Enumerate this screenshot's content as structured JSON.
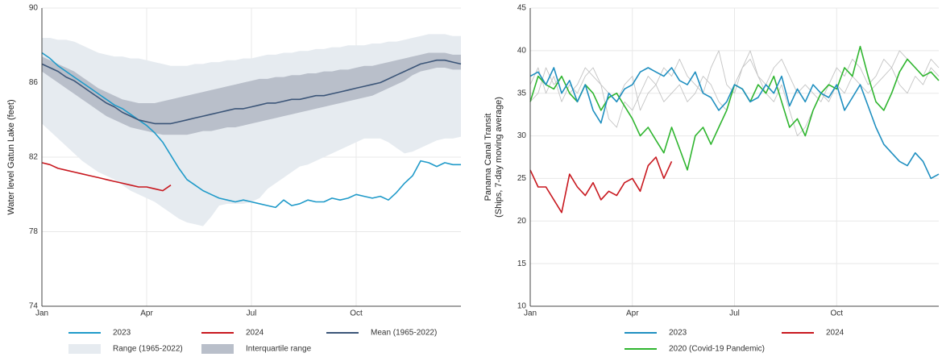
{
  "chart_data": [
    {
      "type": "line",
      "ylabel": "Water level Gatun Lake (feet)",
      "categories": [
        "Jan",
        null,
        null,
        null,
        null,
        null,
        null,
        null,
        null,
        null,
        null,
        null,
        null,
        "Apr",
        null,
        null,
        null,
        null,
        null,
        null,
        null,
        null,
        null,
        null,
        null,
        null,
        "Jul",
        null,
        null,
        null,
        null,
        null,
        null,
        null,
        null,
        null,
        null,
        null,
        null,
        "Oct",
        null,
        null,
        null,
        null,
        null,
        null,
        null,
        null,
        null,
        null,
        null,
        null,
        null
      ],
      "ylim": [
        74,
        90
      ],
      "yticks": [
        74,
        78,
        82,
        86,
        90
      ],
      "grid": true,
      "bands": [
        {
          "name": "Range (1965-2022)",
          "color": "#e6ebf0",
          "upper": [
            88.4,
            88.4,
            88.3,
            88.3,
            88.2,
            88.0,
            87.8,
            87.6,
            87.5,
            87.4,
            87.4,
            87.3,
            87.3,
            87.2,
            87.1,
            87.0,
            86.9,
            86.9,
            86.9,
            87.0,
            87.0,
            87.1,
            87.1,
            87.2,
            87.2,
            87.3,
            87.3,
            87.4,
            87.5,
            87.5,
            87.6,
            87.6,
            87.7,
            87.7,
            87.8,
            87.8,
            87.9,
            87.9,
            88.0,
            88.0,
            88.0,
            88.1,
            88.1,
            88.2,
            88.2,
            88.3,
            88.4,
            88.5,
            88.6,
            88.6,
            88.6,
            88.5,
            88.5
          ],
          "lower": [
            83.8,
            83.4,
            83.0,
            82.6,
            82.2,
            81.8,
            81.5,
            81.2,
            81.0,
            80.8,
            80.5,
            80.2,
            80.0,
            79.8,
            79.6,
            79.3,
            79.0,
            78.7,
            78.5,
            78.4,
            78.3,
            78.8,
            79.4,
            79.5,
            79.5,
            79.5,
            79.6,
            79.8,
            80.3,
            80.6,
            80.9,
            81.2,
            81.5,
            81.6,
            81.8,
            82.0,
            82.2,
            82.4,
            82.6,
            82.8,
            83.0,
            83.0,
            83.0,
            82.8,
            82.5,
            82.2,
            82.3,
            82.5,
            82.7,
            82.9,
            83.0,
            83.0,
            83.1
          ]
        },
        {
          "name": "Interquartile range",
          "color": "#b9bfca",
          "upper": [
            87.4,
            87.2,
            87.0,
            86.8,
            86.6,
            86.3,
            86.0,
            85.7,
            85.5,
            85.3,
            85.1,
            85.0,
            84.9,
            84.9,
            84.9,
            85.0,
            85.1,
            85.2,
            85.3,
            85.4,
            85.5,
            85.6,
            85.7,
            85.8,
            85.9,
            86.0,
            86.1,
            86.2,
            86.2,
            86.3,
            86.3,
            86.4,
            86.4,
            86.5,
            86.5,
            86.6,
            86.6,
            86.7,
            86.7,
            86.8,
            86.9,
            86.9,
            87.0,
            87.1,
            87.2,
            87.3,
            87.4,
            87.5,
            87.6,
            87.6,
            87.6,
            87.5,
            87.5
          ],
          "lower": [
            86.6,
            86.3,
            86.0,
            85.7,
            85.4,
            85.1,
            84.8,
            84.5,
            84.2,
            84.0,
            83.8,
            83.6,
            83.5,
            83.4,
            83.3,
            83.2,
            83.2,
            83.2,
            83.2,
            83.3,
            83.4,
            83.4,
            83.5,
            83.6,
            83.6,
            83.7,
            83.8,
            83.9,
            84.0,
            84.1,
            84.2,
            84.3,
            84.4,
            84.5,
            84.6,
            84.7,
            84.8,
            84.9,
            85.0,
            85.1,
            85.2,
            85.3,
            85.5,
            85.7,
            85.9,
            86.1,
            86.4,
            86.6,
            86.7,
            86.8,
            86.8,
            86.7,
            86.7
          ]
        }
      ],
      "series": [
        {
          "name": "2023",
          "color": "#1f9ac9",
          "values": [
            87.6,
            87.3,
            86.9,
            86.6,
            86.3,
            86.0,
            85.7,
            85.4,
            85.1,
            84.8,
            84.6,
            84.3,
            84.0,
            83.7,
            83.3,
            82.8,
            82.1,
            81.4,
            80.8,
            80.5,
            80.2,
            80.0,
            79.8,
            79.7,
            79.6,
            79.7,
            79.6,
            79.5,
            79.4,
            79.3,
            79.7,
            79.4,
            79.5,
            79.7,
            79.6,
            79.6,
            79.8,
            79.7,
            79.8,
            80.0,
            79.9,
            79.8,
            79.9,
            79.7,
            80.1,
            80.6,
            81.0,
            81.8,
            81.7,
            81.5,
            81.7,
            81.6,
            81.6
          ]
        },
        {
          "name": "2024",
          "color": "#c8171e",
          "values": [
            81.7,
            81.6,
            81.4,
            81.3,
            81.2,
            81.1,
            81.0,
            80.9,
            80.8,
            80.7,
            80.6,
            80.5,
            80.4,
            80.4,
            80.3,
            80.2,
            80.5,
            null,
            null,
            null,
            null,
            null,
            null,
            null,
            null,
            null,
            null,
            null,
            null,
            null,
            null,
            null,
            null,
            null,
            null,
            null,
            null,
            null,
            null,
            null,
            null,
            null,
            null,
            null,
            null,
            null,
            null,
            null,
            null,
            null,
            null,
            null,
            null
          ]
        },
        {
          "name": "Mean (1965-2022)",
          "color": "#3b5578",
          "values": [
            87.0,
            86.8,
            86.6,
            86.3,
            86.1,
            85.8,
            85.5,
            85.2,
            84.9,
            84.7,
            84.4,
            84.2,
            84.0,
            83.9,
            83.8,
            83.8,
            83.8,
            83.9,
            84.0,
            84.1,
            84.2,
            84.3,
            84.4,
            84.5,
            84.6,
            84.6,
            84.7,
            84.8,
            84.9,
            84.9,
            85.0,
            85.1,
            85.1,
            85.2,
            85.3,
            85.3,
            85.4,
            85.5,
            85.6,
            85.7,
            85.8,
            85.9,
            86.0,
            86.2,
            86.4,
            86.6,
            86.8,
            87.0,
            87.1,
            87.2,
            87.2,
            87.1,
            87.0
          ]
        }
      ]
    },
    {
      "type": "line",
      "ylabel": [
        "Panama Canal Transit",
        "(Ships, 7-day moving average)"
      ],
      "categories": [
        "Jan",
        null,
        null,
        null,
        null,
        null,
        null,
        null,
        null,
        null,
        null,
        null,
        null,
        "Apr",
        null,
        null,
        null,
        null,
        null,
        null,
        null,
        null,
        null,
        null,
        null,
        null,
        "Jul",
        null,
        null,
        null,
        null,
        null,
        null,
        null,
        null,
        null,
        null,
        null,
        null,
        "Oct",
        null,
        null,
        null,
        null,
        null,
        null,
        null,
        null,
        null,
        null,
        null,
        null,
        null
      ],
      "ylim": [
        10,
        45
      ],
      "yticks": [
        10,
        15,
        20,
        25,
        30,
        35,
        40,
        45
      ],
      "grid": true,
      "series": [
        {
          "color": "#c4c4c4",
          "values": [
            34,
            35,
            38,
            36,
            37,
            35,
            36,
            38,
            37,
            36,
            35,
            34,
            36,
            37,
            33,
            35,
            36,
            38,
            37,
            39,
            37,
            36,
            35,
            38,
            40,
            36,
            35,
            38,
            40,
            37,
            36,
            38,
            39,
            37,
            35,
            36,
            35,
            34,
            36,
            38,
            37,
            39,
            38,
            36,
            37,
            39,
            38,
            40,
            39,
            38,
            37,
            39,
            38
          ]
        },
        {
          "color": "#c4c4c4",
          "values": [
            36,
            38,
            35,
            37,
            34,
            36,
            35,
            37,
            38,
            36,
            32,
            31,
            34,
            33,
            35,
            37,
            36,
            34,
            35,
            36,
            34,
            35,
            37,
            36,
            34,
            33,
            36,
            38,
            39,
            37,
            35,
            34,
            36,
            33,
            30,
            31,
            33,
            35,
            34,
            36,
            35,
            37,
            36,
            35,
            36,
            37,
            38,
            36,
            35,
            37,
            36,
            38,
            37
          ]
        },
        {
          "name": "2020 (Covid-19 Pandemic)",
          "color": "#2fb52f",
          "values": [
            34,
            37,
            36,
            35.5,
            37,
            35,
            34,
            36,
            35,
            33,
            34.5,
            35,
            33.5,
            32,
            30,
            31,
            29.5,
            28,
            31,
            28.5,
            26,
            30,
            31,
            29,
            31,
            33,
            36,
            35.5,
            34,
            36,
            35,
            37,
            34,
            31,
            32,
            30,
            33,
            35,
            36,
            35.5,
            38,
            37,
            40.5,
            37,
            34,
            33,
            35,
            37.5,
            39,
            38,
            37,
            37.5,
            36.5
          ]
        },
        {
          "name": "2023",
          "color": "#1f8fc0",
          "values": [
            37,
            37.5,
            36,
            38,
            35,
            36.5,
            34,
            36,
            33,
            31.5,
            35,
            34,
            35.5,
            36,
            37.5,
            38,
            37.5,
            37,
            38,
            36.5,
            36,
            37.5,
            35,
            34.5,
            33,
            34,
            36,
            35.5,
            34,
            34.5,
            36,
            35,
            37,
            33.5,
            35.5,
            34,
            36,
            35,
            34.5,
            36,
            33,
            34.5,
            36,
            33.5,
            31,
            29,
            28,
            27,
            26.5,
            28,
            27,
            25,
            25.5
          ]
        },
        {
          "name": "2024",
          "color": "#c8171e",
          "values": [
            26,
            24,
            24,
            22.5,
            21,
            25.5,
            24,
            23,
            24.5,
            22.5,
            23.5,
            23,
            24.5,
            25,
            23.5,
            26.5,
            27.5,
            25,
            27,
            null,
            null,
            null,
            null,
            null,
            null,
            null,
            null,
            null,
            null,
            null,
            null,
            null,
            null,
            null,
            null,
            null,
            null,
            null,
            null,
            null,
            null,
            null,
            null,
            null,
            null,
            null,
            null,
            null,
            null,
            null,
            null,
            null,
            null
          ]
        }
      ]
    }
  ]
}
